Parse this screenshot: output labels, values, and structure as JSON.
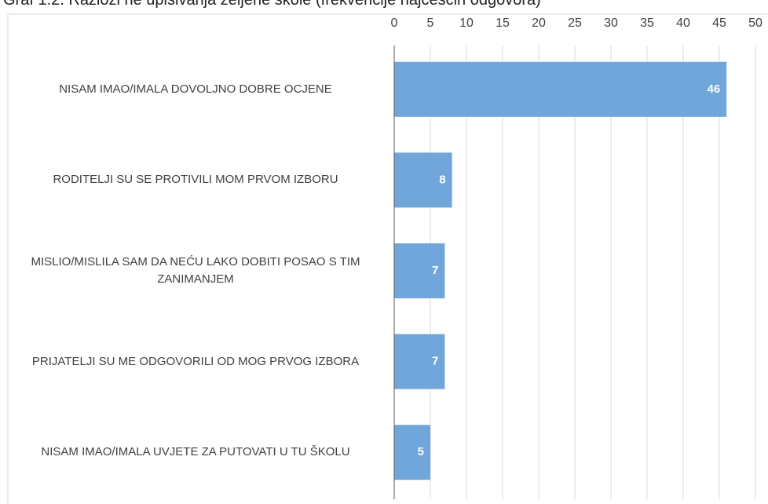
{
  "chart_data": {
    "type": "bar",
    "orientation": "horizontal",
    "title": "Graf 1.2. Razlozi ne upisivanja željene škole (frekvencije najčešćih odgovora)",
    "categories": [
      "NISAM IMAO/IMALA DOVOLJNO DOBRE OCJENE",
      "RODITELJI SU SE PROTIVILI MOM PRVOM IZBORU",
      "MISLIO/MISLILA SAM DA NEĆU LAKO DOBITI POSAO S TIM ZANIMANJEM",
      "PRIJATELJI SU ME ODGOVORILI OD MOG PRVOG IZBORA",
      "NISAM IMAO/IMALA UVJETE ZA PUTOVATI U TU ŠKOLU"
    ],
    "values": [
      46,
      8,
      7,
      7,
      5
    ],
    "color": "#70a6d9",
    "xlim": [
      0,
      50
    ],
    "xticks": [
      0,
      5,
      10,
      15,
      20,
      25,
      30,
      35,
      40,
      45,
      50
    ],
    "grid": true
  }
}
